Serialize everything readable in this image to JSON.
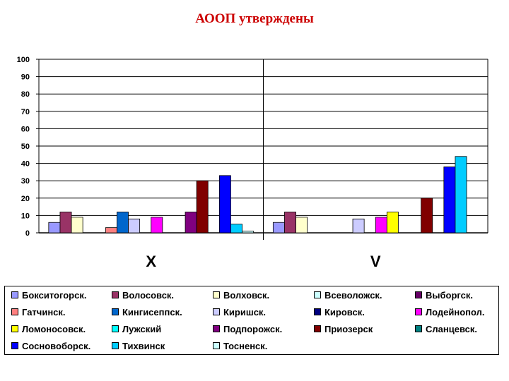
{
  "title": "АООП утверждены",
  "chart_data": {
    "type": "bar",
    "categories": [
      "X",
      "V"
    ],
    "ylim": [
      0,
      100
    ],
    "yticks": [
      0,
      10,
      20,
      30,
      40,
      50,
      60,
      70,
      80,
      90,
      100
    ],
    "grid": true,
    "legend_position": "bottom",
    "series": [
      {
        "name": "Бокситогорск.",
        "color": "#9999ff",
        "values": [
          6,
          6
        ]
      },
      {
        "name": "Волосовск.",
        "color": "#993366",
        "values": [
          12,
          12
        ]
      },
      {
        "name": "Волховск.",
        "color": "#ffffcc",
        "values": [
          9,
          9
        ]
      },
      {
        "name": "Всеволожск.",
        "color": "#ccffff",
        "values": [
          0,
          0
        ]
      },
      {
        "name": "Выборгск.",
        "color": "#660066",
        "values": [
          0,
          0
        ]
      },
      {
        "name": "Гатчинск.",
        "color": "#ff8080",
        "values": [
          3,
          0
        ]
      },
      {
        "name": "Кингисеппск.",
        "color": "#0066cc",
        "values": [
          12,
          0
        ]
      },
      {
        "name": "Киришск.",
        "color": "#ccccff",
        "values": [
          8,
          8
        ]
      },
      {
        "name": "Кировск.",
        "color": "#000080",
        "values": [
          0,
          0
        ]
      },
      {
        "name": "Лодейнопол.",
        "color": "#ff00ff",
        "values": [
          9,
          9
        ]
      },
      {
        "name": "Ломоносовск.",
        "color": "#ffff00",
        "values": [
          0,
          12
        ]
      },
      {
        "name": "Лужский",
        "color": "#00ffff",
        "values": [
          0,
          0
        ]
      },
      {
        "name": "Подпорожск.",
        "color": "#800080",
        "values": [
          12,
          0
        ]
      },
      {
        "name": "Приозерск",
        "color": "#800000",
        "values": [
          30,
          20
        ]
      },
      {
        "name": "Сланцевск.",
        "color": "#008080",
        "values": [
          0,
          0
        ]
      },
      {
        "name": "Сосновоборск.",
        "color": "#0000ff",
        "values": [
          33,
          38
        ]
      },
      {
        "name": "Тихвинск",
        "color": "#00ccff",
        "values": [
          5,
          44
        ]
      },
      {
        "name": "Тосненск.",
        "color": "#ccffff",
        "values": [
          1,
          0
        ]
      }
    ]
  }
}
